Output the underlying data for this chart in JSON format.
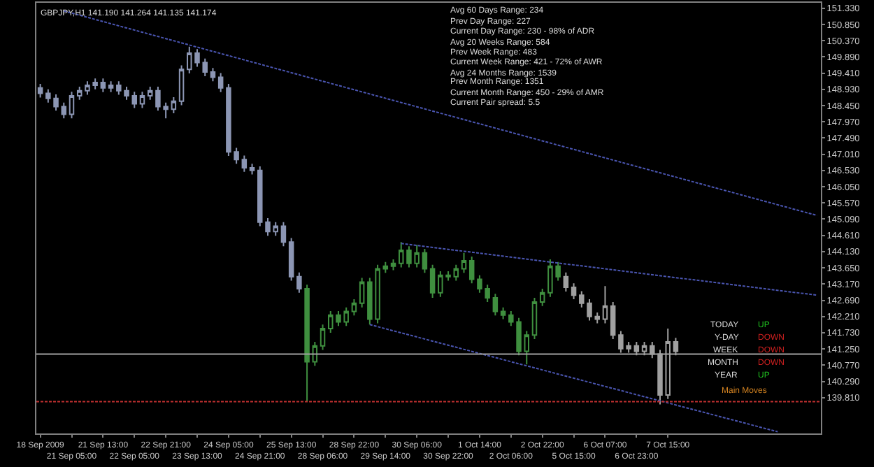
{
  "chart_data": {
    "type": "candlestick",
    "title": "GBPJPY,H1 141.190 141.264 141.135 141.174",
    "annotations": [
      "Avg 60 Days Range: 234",
      "Prev Day Range: 227",
      "Current Day Range: 230 - 98% of ADR",
      "Avg 20 Weeks Range: 584",
      "Prev Week Range: 483",
      "Current Week Range: 421 - 72% of AWR",
      "Avg 24 Months Range: 1539",
      "Prev Month Range: 1351",
      "Current Month Range: 450 - 29% of AMR",
      "Current Pair spread: 5.5",
      "TODAY",
      "UP",
      "Y-DAY",
      "DOWN",
      "WEEK",
      "DOWN",
      "MONTH",
      "DOWN",
      "YEAR",
      "UP",
      "Main Moves"
    ],
    "categories": [
      "18 Sep 2009",
      null,
      null,
      null,
      "21 Sep 05:00",
      null,
      null,
      null,
      "21 Sep 13:00",
      null,
      null,
      null,
      "22 Sep 05:00",
      null,
      null,
      null,
      "22 Sep 21:00",
      null,
      null,
      null,
      "23 Sep 13:00",
      null,
      null,
      null,
      "24 Sep 05:00",
      null,
      null,
      null,
      "24 Sep 21:00",
      null,
      null,
      null,
      "25 Sep 13:00",
      null,
      null,
      null,
      "28 Sep 06:00",
      null,
      null,
      null,
      "28 Sep 22:00",
      null,
      null,
      null,
      "29 Sep 14:00",
      null,
      null,
      null,
      "30 Sep 06:00",
      null,
      null,
      null,
      "30 Sep 22:00",
      null,
      null,
      null,
      "1 Oct 14:00",
      null,
      null,
      null,
      "2 Oct 06:00",
      null,
      null,
      null,
      "2 Oct 22:00",
      null,
      null,
      null,
      "5 Oct 15:00",
      null,
      null,
      null,
      "6 Oct 07:00",
      null,
      null,
      null,
      "6 Oct 23:00",
      null,
      null,
      null,
      "7 Oct 15:00",
      null,
      null,
      null,
      null,
      null,
      null,
      null,
      null,
      null,
      null,
      null,
      null,
      null,
      null,
      null,
      null,
      null,
      null,
      null
    ],
    "ohlc": [
      [
        148.97,
        149.09,
        148.69,
        148.81
      ],
      [
        148.81,
        148.93,
        148.54,
        148.66
      ],
      [
        148.66,
        148.78,
        148.3,
        148.42
      ],
      [
        148.42,
        148.54,
        148.07,
        148.19
      ],
      [
        148.19,
        148.86,
        148.07,
        148.74
      ],
      [
        148.74,
        149.01,
        148.62,
        148.89
      ],
      [
        148.89,
        149.17,
        148.77,
        149.05
      ],
      [
        149.05,
        149.25,
        148.93,
        149.13
      ],
      [
        149.13,
        149.25,
        148.85,
        148.97
      ],
      [
        148.97,
        149.17,
        148.85,
        149.05
      ],
      [
        149.05,
        149.17,
        148.77,
        148.89
      ],
      [
        148.89,
        149.01,
        148.62,
        148.74
      ],
      [
        148.74,
        148.86,
        148.38,
        148.5
      ],
      [
        148.5,
        148.86,
        148.38,
        148.74
      ],
      [
        148.74,
        149.01,
        148.62,
        148.89
      ],
      [
        148.89,
        149.01,
        148.3,
        148.42
      ],
      [
        148.42,
        148.54,
        148.07,
        148.34
      ],
      [
        148.34,
        148.7,
        148.22,
        148.58
      ],
      [
        148.58,
        149.64,
        148.46,
        149.52
      ],
      [
        149.52,
        150.19,
        149.4,
        150.0
      ],
      [
        150.0,
        150.12,
        149.6,
        149.72
      ],
      [
        149.72,
        149.84,
        149.32,
        149.44
      ],
      [
        149.44,
        149.56,
        149.17,
        149.29
      ],
      [
        149.29,
        149.41,
        148.85,
        148.97
      ],
      [
        148.97,
        149.09,
        146.96,
        147.08
      ],
      [
        147.08,
        147.2,
        146.73,
        146.85
      ],
      [
        146.85,
        146.97,
        146.49,
        146.61
      ],
      [
        146.61,
        146.73,
        146.41,
        146.53
      ],
      [
        146.53,
        146.65,
        144.88,
        145.0
      ],
      [
        145.0,
        145.12,
        144.6,
        144.72
      ],
      [
        144.72,
        145.0,
        144.6,
        144.88
      ],
      [
        144.88,
        145.0,
        144.29,
        144.41
      ],
      [
        144.41,
        144.53,
        143.27,
        143.39
      ],
      [
        143.39,
        143.51,
        142.91,
        143.03
      ],
      [
        143.03,
        143.15,
        139.69,
        140.87
      ],
      [
        140.87,
        141.46,
        140.75,
        141.34
      ],
      [
        141.34,
        141.97,
        141.22,
        141.85
      ],
      [
        141.85,
        142.37,
        141.73,
        142.25
      ],
      [
        142.25,
        142.37,
        141.93,
        142.05
      ],
      [
        142.05,
        142.48,
        141.93,
        142.36
      ],
      [
        142.36,
        142.72,
        142.24,
        142.6
      ],
      [
        142.6,
        143.35,
        142.48,
        143.23
      ],
      [
        143.23,
        143.35,
        141.97,
        142.13
      ],
      [
        142.13,
        143.74,
        142.01,
        143.62
      ],
      [
        143.62,
        143.82,
        143.5,
        143.7
      ],
      [
        143.7,
        143.9,
        143.58,
        143.78
      ],
      [
        143.78,
        144.41,
        143.66,
        144.17
      ],
      [
        144.17,
        144.29,
        143.66,
        143.78
      ],
      [
        143.78,
        144.33,
        143.66,
        144.09
      ],
      [
        144.09,
        144.21,
        143.5,
        143.62
      ],
      [
        143.62,
        143.74,
        142.76,
        142.91
      ],
      [
        142.91,
        143.55,
        142.79,
        143.43
      ],
      [
        143.43,
        143.55,
        143.27,
        143.39
      ],
      [
        143.39,
        143.74,
        143.27,
        143.62
      ],
      [
        143.62,
        144.09,
        143.5,
        143.86
      ],
      [
        143.86,
        143.98,
        143.19,
        143.31
      ],
      [
        143.31,
        143.43,
        142.91,
        143.03
      ],
      [
        143.03,
        143.15,
        142.64,
        142.76
      ],
      [
        142.76,
        142.88,
        142.24,
        142.36
      ],
      [
        142.36,
        142.48,
        142.13,
        142.25
      ],
      [
        142.25,
        142.37,
        141.93,
        142.05
      ],
      [
        142.05,
        142.17,
        141.06,
        141.18
      ],
      [
        141.18,
        141.78,
        140.79,
        141.66
      ],
      [
        141.66,
        142.76,
        141.54,
        142.64
      ],
      [
        142.64,
        143.03,
        142.52,
        142.91
      ],
      [
        142.91,
        143.9,
        142.79,
        143.7
      ],
      [
        143.7,
        143.82,
        143.27,
        143.39
      ],
      [
        143.39,
        143.51,
        142.95,
        143.07
      ],
      [
        143.07,
        143.19,
        142.72,
        142.84
      ],
      [
        142.84,
        142.96,
        142.48,
        142.6
      ],
      [
        142.6,
        142.72,
        142.09,
        142.21
      ],
      [
        142.21,
        142.33,
        142.01,
        142.13
      ],
      [
        142.13,
        143.11,
        142.01,
        142.52
      ],
      [
        142.52,
        142.64,
        141.54,
        141.66
      ],
      [
        141.66,
        141.78,
        141.14,
        141.26
      ],
      [
        141.26,
        141.46,
        141.14,
        141.34
      ],
      [
        141.34,
        141.46,
        141.06,
        141.18
      ],
      [
        141.18,
        141.46,
        141.06,
        141.34
      ],
      [
        141.34,
        141.46,
        140.98,
        141.1
      ],
      [
        141.1,
        141.22,
        139.61,
        139.89
      ],
      [
        139.89,
        141.85,
        139.77,
        141.46
      ],
      [
        141.46,
        141.58,
        141.06,
        141.18
      ],
      null,
      null,
      null,
      null,
      null,
      null,
      null,
      null,
      null,
      null,
      null,
      null,
      null,
      null,
      null,
      null,
      null,
      null
    ],
    "colors": [
      "#8c96b4",
      "#8c96b4",
      "#8c96b4",
      "#8c96b4",
      "#8c96b4",
      "#8c96b4",
      "#8c96b4",
      "#8c96b4",
      "#8c96b4",
      "#8c96b4",
      "#8c96b4",
      "#8c96b4",
      "#8c96b4",
      "#8c96b4",
      "#8c96b4",
      "#8c96b4",
      "#8c96b4",
      "#8c96b4",
      "#8c96b4",
      "#8c96b4",
      "#8c96b4",
      "#8c96b4",
      "#8c96b4",
      "#8c96b4",
      "#8c96b4",
      "#8c96b4",
      "#8c96b4",
      "#8c96b4",
      "#8c96b4",
      "#8c96b4",
      "#8c96b4",
      "#8c96b4",
      "#8c96b4",
      "#8c96b4",
      "#3f8f3f",
      "#3f8f3f",
      "#3f8f3f",
      "#3f8f3f",
      "#3f8f3f",
      "#3f8f3f",
      "#3f8f3f",
      "#3f8f3f",
      "#3f8f3f",
      "#3f8f3f",
      "#3f8f3f",
      "#3f8f3f",
      "#3f8f3f",
      "#3f8f3f",
      "#3f8f3f",
      "#3f8f3f",
      "#3f8f3f",
      "#3f8f3f",
      "#3f8f3f",
      "#3f8f3f",
      "#3f8f3f",
      "#3f8f3f",
      "#3f8f3f",
      "#3f8f3f",
      "#3f8f3f",
      "#3f8f3f",
      "#3f8f3f",
      "#3f8f3f",
      "#3f8f3f",
      "#3f8f3f",
      "#3f8f3f",
      "#3f8f3f",
      "#3f8f3f",
      "#a0a0a0",
      "#a0a0a0",
      "#a0a0a0",
      "#a0a0a0",
      "#a0a0a0",
      "#a0a0a0",
      "#a0a0a0",
      "#a0a0a0",
      "#a0a0a0",
      "#a0a0a0",
      "#a0a0a0",
      "#a0a0a0",
      "#a0a0a0",
      "#a0a0a0",
      "#a0a0a0",
      null,
      null,
      null,
      null,
      null,
      null,
      null,
      null,
      null,
      null,
      null,
      null,
      null,
      null,
      null,
      null,
      null,
      null
    ],
    "series": [
      {
        "type": "line",
        "color": "#4a55b0",
        "line_style": "dotted",
        "values": [
          null,
          null,
          null,
          151.25,
          null,
          null,
          null,
          null,
          null,
          null,
          null,
          null,
          null,
          null,
          null,
          null,
          null,
          null,
          null,
          null,
          null,
          null,
          null,
          null,
          null,
          null,
          null,
          null,
          null,
          null,
          null,
          null,
          null,
          null,
          null,
          null,
          null,
          null,
          null,
          null,
          null,
          null,
          null,
          null,
          null,
          null,
          null,
          null,
          null,
          null,
          null,
          null,
          null,
          null,
          null,
          null,
          null,
          null,
          null,
          null,
          null,
          null,
          null,
          null,
          null,
          null,
          null,
          null,
          null,
          null,
          null,
          null,
          null,
          null,
          null,
          null,
          null,
          null,
          null,
          null,
          null,
          null,
          null,
          null,
          null,
          null,
          null,
          null,
          null,
          null,
          null,
          null,
          null,
          null,
          null,
          null,
          null,
          null,
          null,
          145.2
        ]
      },
      {
        "type": "line",
        "color": "#4a55b0",
        "line_style": "dotted",
        "values": [
          null,
          null,
          null,
          null,
          null,
          null,
          null,
          null,
          null,
          null,
          null,
          null,
          null,
          null,
          null,
          null,
          null,
          null,
          null,
          null,
          null,
          null,
          null,
          null,
          null,
          null,
          null,
          null,
          null,
          null,
          null,
          null,
          null,
          null,
          null,
          null,
          null,
          null,
          null,
          null,
          null,
          null,
          null,
          null,
          null,
          null,
          144.37,
          null,
          null,
          null,
          null,
          null,
          null,
          null,
          null,
          null,
          null,
          null,
          null,
          null,
          null,
          null,
          null,
          null,
          null,
          null,
          null,
          null,
          null,
          null,
          null,
          null,
          null,
          null,
          null,
          null,
          null,
          null,
          null,
          null,
          null,
          null,
          null,
          null,
          null,
          null,
          null,
          null,
          null,
          null,
          null,
          null,
          null,
          null,
          null,
          null,
          null,
          null,
          null,
          142.84
        ]
      },
      {
        "type": "line",
        "color": "#4a55b0",
        "line_style": "dotted",
        "values": [
          null,
          null,
          null,
          null,
          null,
          null,
          null,
          null,
          null,
          null,
          null,
          null,
          null,
          null,
          null,
          null,
          null,
          null,
          null,
          null,
          null,
          null,
          null,
          null,
          null,
          null,
          null,
          null,
          null,
          null,
          null,
          null,
          null,
          null,
          null,
          null,
          null,
          null,
          null,
          null,
          null,
          null,
          141.97,
          null,
          null,
          null,
          null,
          null,
          null,
          null,
          null,
          null,
          null,
          null,
          null,
          null,
          null,
          null,
          null,
          null,
          null,
          null,
          null,
          null,
          null,
          null,
          null,
          null,
          null,
          null,
          null,
          null,
          null,
          null,
          null,
          null,
          null,
          null,
          null,
          null,
          null,
          null,
          null,
          null,
          null,
          null,
          null,
          null,
          null,
          null,
          null,
          null,
          null,
          null,
          138.8,
          null,
          null,
          null,
          null,
          null
        ]
      }
    ],
    "ref_lines": [
      {
        "axis": "y",
        "value": 141.1,
        "color": "#a0a0a0",
        "line_style": "solid"
      },
      {
        "axis": "y",
        "value": 139.69,
        "color": "#c03030",
        "line_style": "dotted"
      }
    ],
    "ylim": [
      138.75,
      151.49
    ],
    "yticks": [
      {
        "value": 151.33,
        "label": "151.330"
      },
      {
        "value": 150.85,
        "label": "150.850"
      },
      {
        "value": 150.37,
        "label": "150.370"
      },
      {
        "value": 149.89,
        "label": "149.890"
      },
      {
        "value": 149.41,
        "label": "149.410"
      },
      {
        "value": 148.93,
        "label": "148.930"
      },
      {
        "value": 148.45,
        "label": "148.450"
      },
      {
        "value": 147.97,
        "label": "147.970"
      },
      {
        "value": 147.49,
        "label": "147.490"
      },
      {
        "value": 147.01,
        "label": "147.010"
      },
      {
        "value": 146.53,
        "label": "146.530"
      },
      {
        "value": 146.05,
        "label": "146.050"
      },
      {
        "value": 145.57,
        "label": "145.570"
      },
      {
        "value": 145.09,
        "label": "145.090"
      },
      {
        "value": 144.61,
        "label": "144.610"
      },
      {
        "value": 144.13,
        "label": "144.130"
      },
      {
        "value": 143.65,
        "label": "143.650"
      },
      {
        "value": 143.17,
        "label": "143.170"
      },
      {
        "value": 142.69,
        "label": "142.690"
      },
      {
        "value": 142.21,
        "label": "142.210"
      },
      {
        "value": 141.73,
        "label": "141.730"
      },
      {
        "value": 141.25,
        "label": "141.250"
      },
      {
        "value": 140.77,
        "label": "140.770"
      },
      {
        "value": 140.29,
        "label": "140.290"
      },
      {
        "value": 139.81,
        "label": "139.810"
      }
    ],
    "grid": false
  }
}
